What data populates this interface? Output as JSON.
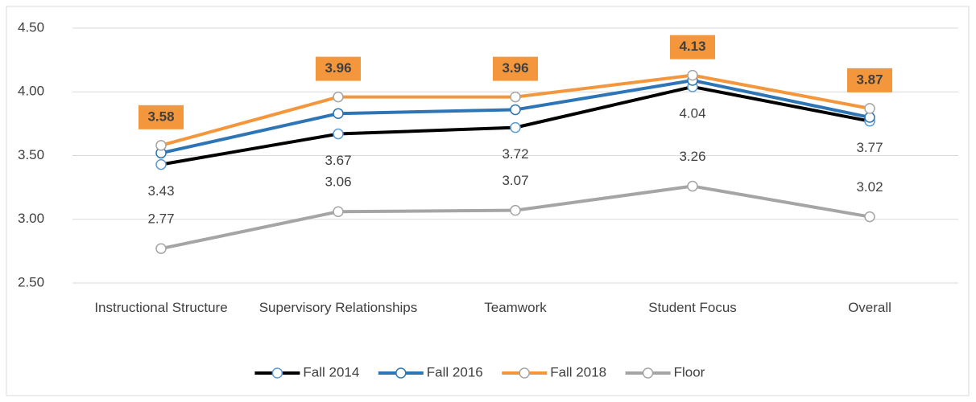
{
  "chart_data": {
    "type": "line",
    "categories": [
      "Instructional Structure",
      "Supervisory Relationships",
      "Teamwork",
      "Student Focus",
      "Overall"
    ],
    "series": [
      {
        "name": "Fall 2014",
        "color": "#000000",
        "marker_color": "#5b9bd5",
        "values": [
          3.43,
          3.67,
          3.72,
          4.04,
          3.77
        ],
        "data_labels": true,
        "label_position": "below"
      },
      {
        "name": "Fall 2016",
        "color": "#2e75b6",
        "marker_color": "#2e75b6",
        "values": [
          3.52,
          3.83,
          3.86,
          4.09,
          3.8
        ],
        "data_labels": false
      },
      {
        "name": "Fall 2018",
        "color": "#f4973c",
        "marker_color": "#a5a5a5",
        "values": [
          3.58,
          3.96,
          3.96,
          4.13,
          3.87
        ],
        "data_labels": true,
        "label_position": "above-boxed"
      },
      {
        "name": "Floor",
        "color": "#a5a5a5",
        "marker_color": "#a5a5a5",
        "values": [
          2.77,
          3.06,
          3.07,
          3.26,
          3.02
        ],
        "data_labels": true,
        "label_position": "above"
      }
    ],
    "ylim": [
      2.5,
      4.5
    ],
    "yticks": [
      {
        "value": 2.5,
        "label": "2.50"
      },
      {
        "value": 3.0,
        "label": "3.00"
      },
      {
        "value": 3.5,
        "label": "3.50"
      },
      {
        "value": 4.0,
        "label": "4.00"
      },
      {
        "value": 4.5,
        "label": "4.50"
      }
    ],
    "grid": true,
    "legend": "bottom"
  }
}
